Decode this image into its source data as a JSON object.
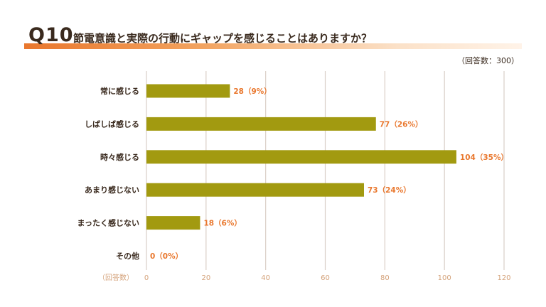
{
  "header": {
    "question_number": "Q10",
    "question_text": "節電意識と実際の行動にギャップを感じることはありますか？",
    "respondents": "（回答数：300）"
  },
  "colors": {
    "bar": "#a29a10",
    "accent": "#e9772d",
    "grid": "#d9cfc7",
    "text": "#3a2a1e"
  },
  "chart_data": {
    "type": "bar",
    "orientation": "horizontal",
    "title": "節電意識と実際の行動にギャップを感じることはありますか？",
    "xlabel": "（回答数）",
    "ylabel": "",
    "xlim": [
      0,
      120
    ],
    "xticks": [
      "0",
      "20",
      "40",
      "60",
      "80",
      "100",
      "120"
    ],
    "categories": [
      "常に感じる",
      "しばしば感じる",
      "時々感じる",
      "あまり感じない",
      "まったく感じない",
      "その他"
    ],
    "values": [
      28,
      77,
      104,
      73,
      18,
      0
    ],
    "labels": [
      "28（9%）",
      "77（26%）",
      "104（35%）",
      "73（24%）",
      "18（6%）",
      "0（0%）"
    ],
    "grid": true
  }
}
